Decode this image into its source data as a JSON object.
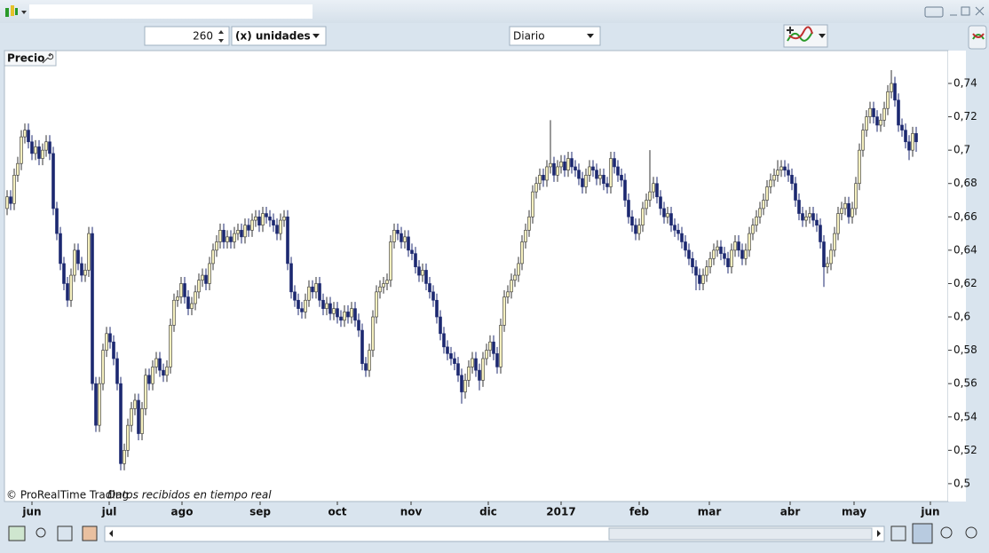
{
  "toolbar": {
    "units": 260,
    "units_label": "(x) unidades",
    "period": "Diario"
  },
  "chart_data": {
    "type": "candlestick",
    "panel_label": "Precio",
    "copyright": "© ProRealTime Trading",
    "status": "Datos recibidos en tiempo real",
    "up_color": "#f4efbe",
    "down_color": "#1c2870",
    "open": [
      0.665,
      0.672,
      0.668,
      0.685,
      0.692,
      0.708,
      0.712,
      0.705,
      0.698,
      0.702,
      0.695,
      0.7,
      0.705,
      0.698,
      0.665,
      0.65,
      0.632,
      0.62,
      0.61,
      0.625,
      0.64,
      0.632,
      0.625,
      0.628,
      0.65,
      0.56,
      0.535,
      0.56,
      0.58,
      0.59,
      0.585,
      0.575,
      0.56,
      0.512,
      0.52,
      0.535,
      0.545,
      0.55,
      0.53,
      0.545,
      0.565,
      0.56,
      0.57,
      0.575,
      0.568,
      0.565,
      0.57,
      0.595,
      0.61,
      0.612,
      0.62,
      0.612,
      0.605,
      0.608,
      0.615,
      0.622,
      0.625,
      0.62,
      0.632,
      0.64,
      0.645,
      0.652,
      0.645,
      0.648,
      0.645,
      0.65,
      0.652,
      0.648,
      0.655,
      0.652,
      0.658,
      0.66,
      0.655,
      0.662,
      0.66,
      0.658,
      0.655,
      0.65,
      0.658,
      0.66,
      0.632,
      0.615,
      0.61,
      0.605,
      0.603,
      0.61,
      0.618,
      0.615,
      0.62,
      0.61,
      0.605,
      0.608,
      0.602,
      0.605,
      0.6,
      0.598,
      0.603,
      0.6,
      0.605,
      0.598,
      0.592,
      0.572,
      0.568,
      0.58,
      0.6,
      0.615,
      0.618,
      0.62,
      0.622,
      0.645,
      0.652,
      0.65,
      0.645,
      0.648,
      0.64,
      0.638,
      0.63,
      0.625,
      0.628,
      0.62,
      0.615,
      0.61,
      0.6,
      0.59,
      0.582,
      0.578,
      0.575,
      0.572,
      0.565,
      0.555,
      0.562,
      0.57,
      0.575,
      0.568,
      0.562,
      0.575,
      0.58,
      0.585,
      0.578,
      0.57,
      0.595,
      0.612,
      0.615,
      0.622,
      0.625,
      0.632,
      0.645,
      0.652,
      0.66,
      0.675,
      0.68,
      0.685,
      0.682,
      0.69,
      0.692,
      0.685,
      0.69,
      0.693,
      0.688,
      0.695,
      0.69,
      0.688,
      0.683,
      0.678,
      0.685,
      0.69,
      0.688,
      0.683,
      0.685,
      0.68,
      0.678,
      0.695,
      0.69,
      0.685,
      0.682,
      0.67,
      0.66,
      0.655,
      0.65,
      0.655,
      0.665,
      0.67,
      0.675,
      0.68,
      0.672,
      0.665,
      0.66,
      0.662,
      0.655,
      0.652,
      0.65,
      0.645,
      0.64,
      0.635,
      0.63,
      0.625,
      0.62,
      0.625,
      0.63,
      0.635,
      0.64,
      0.642,
      0.638,
      0.635,
      0.63,
      0.64,
      0.645,
      0.64,
      0.635,
      0.64,
      0.65,
      0.655,
      0.66,
      0.665,
      0.67,
      0.678,
      0.682,
      0.685,
      0.688,
      0.69,
      0.688,
      0.685,
      0.68,
      0.67,
      0.662,
      0.658,
      0.66,
      0.662,
      0.658,
      0.655,
      0.645,
      0.63,
      0.632,
      0.64,
      0.65,
      0.662,
      0.665,
      0.668,
      0.66,
      0.665,
      0.68,
      0.7,
      0.712,
      0.72,
      0.725,
      0.72,
      0.715,
      0.718,
      0.725,
      0.735,
      0.74,
      0.73,
      0.715,
      0.712,
      0.705,
      0.7,
      0.71
    ],
    "high": [
      0.676,
      0.676,
      0.689,
      0.696,
      0.712,
      0.716,
      0.716,
      0.709,
      0.706,
      0.706,
      0.704,
      0.709,
      0.709,
      0.702,
      0.669,
      0.654,
      0.636,
      0.624,
      0.629,
      0.644,
      0.644,
      0.636,
      0.632,
      0.654,
      0.654,
      0.564,
      0.564,
      0.584,
      0.594,
      0.594,
      0.589,
      0.579,
      0.564,
      0.524,
      0.539,
      0.549,
      0.554,
      0.554,
      0.549,
      0.569,
      0.569,
      0.574,
      0.579,
      0.579,
      0.572,
      0.574,
      0.599,
      0.614,
      0.616,
      0.624,
      0.624,
      0.616,
      0.612,
      0.619,
      0.626,
      0.629,
      0.629,
      0.636,
      0.644,
      0.649,
      0.656,
      0.656,
      0.652,
      0.652,
      0.654,
      0.656,
      0.656,
      0.659,
      0.659,
      0.662,
      0.664,
      0.664,
      0.666,
      0.666,
      0.664,
      0.662,
      0.659,
      0.662,
      0.664,
      0.664,
      0.636,
      0.619,
      0.614,
      0.609,
      0.614,
      0.622,
      0.622,
      0.624,
      0.624,
      0.614,
      0.612,
      0.612,
      0.609,
      0.609,
      0.604,
      0.607,
      0.607,
      0.609,
      0.609,
      0.602,
      0.596,
      0.576,
      0.584,
      0.604,
      0.619,
      0.622,
      0.624,
      0.626,
      0.649,
      0.656,
      0.656,
      0.654,
      0.652,
      0.652,
      0.644,
      0.642,
      0.634,
      0.632,
      0.632,
      0.624,
      0.619,
      0.614,
      0.604,
      0.594,
      0.586,
      0.582,
      0.579,
      0.576,
      0.569,
      0.566,
      0.574,
      0.579,
      0.579,
      0.572,
      0.579,
      0.584,
      0.589,
      0.589,
      0.582,
      0.599,
      0.616,
      0.619,
      0.626,
      0.629,
      0.636,
      0.649,
      0.656,
      0.664,
      0.679,
      0.684,
      0.689,
      0.689,
      0.694,
      0.718,
      0.696,
      0.694,
      0.697,
      0.697,
      0.699,
      0.699,
      0.694,
      0.692,
      0.687,
      0.689,
      0.694,
      0.694,
      0.692,
      0.689,
      0.689,
      0.684,
      0.699,
      0.699,
      0.694,
      0.689,
      0.686,
      0.674,
      0.664,
      0.659,
      0.659,
      0.669,
      0.674,
      0.7,
      0.684,
      0.684,
      0.676,
      0.669,
      0.666,
      0.666,
      0.659,
      0.656,
      0.654,
      0.649,
      0.644,
      0.639,
      0.634,
      0.629,
      0.629,
      0.634,
      0.639,
      0.644,
      0.646,
      0.646,
      0.642,
      0.639,
      0.644,
      0.649,
      0.649,
      0.644,
      0.644,
      0.654,
      0.659,
      0.664,
      0.669,
      0.674,
      0.682,
      0.686,
      0.689,
      0.694,
      0.694,
      0.694,
      0.692,
      0.689,
      0.684,
      0.674,
      0.666,
      0.664,
      0.666,
      0.666,
      0.662,
      0.659,
      0.649,
      0.636,
      0.644,
      0.654,
      0.666,
      0.669,
      0.672,
      0.672,
      0.669,
      0.684,
      0.704,
      0.716,
      0.724,
      0.729,
      0.729,
      0.724,
      0.722,
      0.729,
      0.739,
      0.748,
      0.744,
      0.734,
      0.719,
      0.716,
      0.709,
      0.714,
      0.714
    ],
    "low": [
      0.661,
      0.664,
      0.664,
      0.681,
      0.688,
      0.704,
      0.701,
      0.694,
      0.694,
      0.691,
      0.691,
      0.696,
      0.694,
      0.661,
      0.646,
      0.628,
      0.616,
      0.606,
      0.606,
      0.621,
      0.628,
      0.621,
      0.621,
      0.624,
      0.556,
      0.531,
      0.531,
      0.556,
      0.576,
      0.581,
      0.571,
      0.556,
      0.508,
      0.508,
      0.516,
      0.531,
      0.541,
      0.526,
      0.526,
      0.541,
      0.556,
      0.556,
      0.566,
      0.564,
      0.561,
      0.561,
      0.566,
      0.591,
      0.606,
      0.608,
      0.608,
      0.601,
      0.601,
      0.604,
      0.611,
      0.618,
      0.616,
      0.616,
      0.628,
      0.636,
      0.641,
      0.641,
      0.641,
      0.641,
      0.641,
      0.646,
      0.644,
      0.644,
      0.648,
      0.648,
      0.654,
      0.651,
      0.651,
      0.656,
      0.654,
      0.651,
      0.646,
      0.646,
      0.654,
      0.628,
      0.611,
      0.606,
      0.601,
      0.599,
      0.599,
      0.606,
      0.611,
      0.611,
      0.606,
      0.601,
      0.601,
      0.598,
      0.598,
      0.596,
      0.594,
      0.594,
      0.596,
      0.596,
      0.594,
      0.588,
      0.568,
      0.564,
      0.564,
      0.576,
      0.596,
      0.611,
      0.614,
      0.616,
      0.618,
      0.641,
      0.646,
      0.641,
      0.641,
      0.636,
      0.634,
      0.626,
      0.621,
      0.621,
      0.616,
      0.611,
      0.606,
      0.596,
      0.586,
      0.578,
      0.574,
      0.571,
      0.568,
      0.561,
      0.548,
      0.551,
      0.558,
      0.566,
      0.564,
      0.556,
      0.558,
      0.571,
      0.576,
      0.574,
      0.566,
      0.566,
      0.591,
      0.608,
      0.611,
      0.618,
      0.621,
      0.628,
      0.641,
      0.648,
      0.656,
      0.671,
      0.676,
      0.678,
      0.678,
      0.686,
      0.681,
      0.681,
      0.686,
      0.684,
      0.684,
      0.686,
      0.684,
      0.679,
      0.674,
      0.674,
      0.681,
      0.684,
      0.679,
      0.679,
      0.676,
      0.674,
      0.674,
      0.686,
      0.681,
      0.678,
      0.666,
      0.656,
      0.651,
      0.646,
      0.646,
      0.651,
      0.661,
      0.666,
      0.671,
      0.668,
      0.661,
      0.656,
      0.656,
      0.651,
      0.648,
      0.646,
      0.641,
      0.636,
      0.631,
      0.626,
      0.616,
      0.616,
      0.616,
      0.621,
      0.626,
      0.631,
      0.636,
      0.634,
      0.631,
      0.626,
      0.626,
      0.636,
      0.636,
      0.631,
      0.631,
      0.636,
      0.646,
      0.651,
      0.656,
      0.661,
      0.666,
      0.674,
      0.678,
      0.681,
      0.684,
      0.684,
      0.681,
      0.676,
      0.666,
      0.658,
      0.654,
      0.654,
      0.656,
      0.654,
      0.651,
      0.641,
      0.618,
      0.626,
      0.628,
      0.636,
      0.646,
      0.658,
      0.661,
      0.656,
      0.656,
      0.661,
      0.676,
      0.696,
      0.708,
      0.716,
      0.716,
      0.711,
      0.711,
      0.714,
      0.721,
      0.731,
      0.726,
      0.711,
      0.708,
      0.701,
      0.694,
      0.696,
      0.699
    ],
    "close": [
      0.672,
      0.668,
      0.685,
      0.692,
      0.708,
      0.712,
      0.705,
      0.698,
      0.702,
      0.695,
      0.7,
      0.705,
      0.698,
      0.665,
      0.65,
      0.632,
      0.62,
      0.61,
      0.625,
      0.64,
      0.632,
      0.625,
      0.628,
      0.65,
      0.56,
      0.535,
      0.56,
      0.58,
      0.59,
      0.585,
      0.575,
      0.56,
      0.512,
      0.52,
      0.535,
      0.545,
      0.55,
      0.53,
      0.545,
      0.565,
      0.56,
      0.57,
      0.575,
      0.568,
      0.565,
      0.57,
      0.595,
      0.61,
      0.612,
      0.62,
      0.612,
      0.605,
      0.608,
      0.615,
      0.622,
      0.625,
      0.62,
      0.632,
      0.64,
      0.645,
      0.652,
      0.645,
      0.648,
      0.645,
      0.65,
      0.652,
      0.648,
      0.655,
      0.652,
      0.658,
      0.66,
      0.655,
      0.662,
      0.66,
      0.658,
      0.655,
      0.65,
      0.658,
      0.66,
      0.632,
      0.615,
      0.61,
      0.605,
      0.603,
      0.61,
      0.618,
      0.615,
      0.62,
      0.61,
      0.605,
      0.608,
      0.602,
      0.605,
      0.6,
      0.598,
      0.603,
      0.6,
      0.605,
      0.598,
      0.592,
      0.572,
      0.568,
      0.58,
      0.6,
      0.615,
      0.618,
      0.62,
      0.622,
      0.645,
      0.652,
      0.65,
      0.645,
      0.648,
      0.64,
      0.638,
      0.63,
      0.625,
      0.628,
      0.62,
      0.615,
      0.61,
      0.6,
      0.59,
      0.582,
      0.578,
      0.575,
      0.572,
      0.565,
      0.555,
      0.562,
      0.57,
      0.575,
      0.568,
      0.562,
      0.575,
      0.58,
      0.585,
      0.578,
      0.57,
      0.595,
      0.612,
      0.615,
      0.622,
      0.625,
      0.632,
      0.645,
      0.652,
      0.66,
      0.675,
      0.68,
      0.685,
      0.682,
      0.69,
      0.692,
      0.685,
      0.69,
      0.693,
      0.688,
      0.695,
      0.69,
      0.688,
      0.683,
      0.678,
      0.685,
      0.69,
      0.688,
      0.683,
      0.685,
      0.68,
      0.678,
      0.695,
      0.69,
      0.685,
      0.682,
      0.67,
      0.66,
      0.655,
      0.65,
      0.655,
      0.665,
      0.67,
      0.675,
      0.68,
      0.672,
      0.665,
      0.66,
      0.662,
      0.655,
      0.652,
      0.65,
      0.645,
      0.64,
      0.635,
      0.63,
      0.625,
      0.62,
      0.625,
      0.63,
      0.635,
      0.64,
      0.642,
      0.638,
      0.635,
      0.63,
      0.64,
      0.645,
      0.64,
      0.635,
      0.64,
      0.65,
      0.655,
      0.66,
      0.665,
      0.67,
      0.678,
      0.682,
      0.685,
      0.688,
      0.69,
      0.688,
      0.685,
      0.68,
      0.67,
      0.662,
      0.658,
      0.66,
      0.662,
      0.658,
      0.655,
      0.645,
      0.63,
      0.632,
      0.64,
      0.65,
      0.662,
      0.665,
      0.668,
      0.66,
      0.665,
      0.68,
      0.7,
      0.712,
      0.72,
      0.725,
      0.72,
      0.715,
      0.718,
      0.725,
      0.735,
      0.74,
      0.73,
      0.715,
      0.712,
      0.705,
      0.7,
      0.71,
      0.705
    ],
    "xlim": [
      -0.75,
      265
    ],
    "xticks": [
      {
        "value": 7,
        "label": "jun"
      },
      {
        "value": 28.75,
        "label": "jul"
      },
      {
        "value": 49.25,
        "label": "ago"
      },
      {
        "value": 71.25,
        "label": "sep"
      },
      {
        "value": 93,
        "label": "oct"
      },
      {
        "value": 113.75,
        "label": "nov"
      },
      {
        "value": 135.5,
        "label": "dic"
      },
      {
        "value": 156,
        "label": "2017"
      },
      {
        "value": 178,
        "label": "feb"
      },
      {
        "value": 197.75,
        "label": "mar"
      },
      {
        "value": 220.5,
        "label": "abr"
      },
      {
        "value": 238.5,
        "label": "may"
      },
      {
        "value": 260,
        "label": "jun"
      }
    ],
    "ylim": [
      0.4893,
      0.7597
    ],
    "yticks": [
      {
        "value": 0.5,
        "label": "0,5"
      },
      {
        "value": 0.52,
        "label": "0,52"
      },
      {
        "value": 0.54,
        "label": "0,54"
      },
      {
        "value": 0.56,
        "label": "0,56"
      },
      {
        "value": 0.58,
        "label": "0,58"
      },
      {
        "value": 0.6,
        "label": "0,6"
      },
      {
        "value": 0.62,
        "label": "0,62"
      },
      {
        "value": 0.64,
        "label": "0,64"
      },
      {
        "value": 0.66,
        "label": "0,66"
      },
      {
        "value": 0.68,
        "label": "0,68"
      },
      {
        "value": 0.7,
        "label": "0,7"
      },
      {
        "value": 0.72,
        "label": "0,72"
      },
      {
        "value": 0.74,
        "label": "0,74"
      }
    ]
  }
}
